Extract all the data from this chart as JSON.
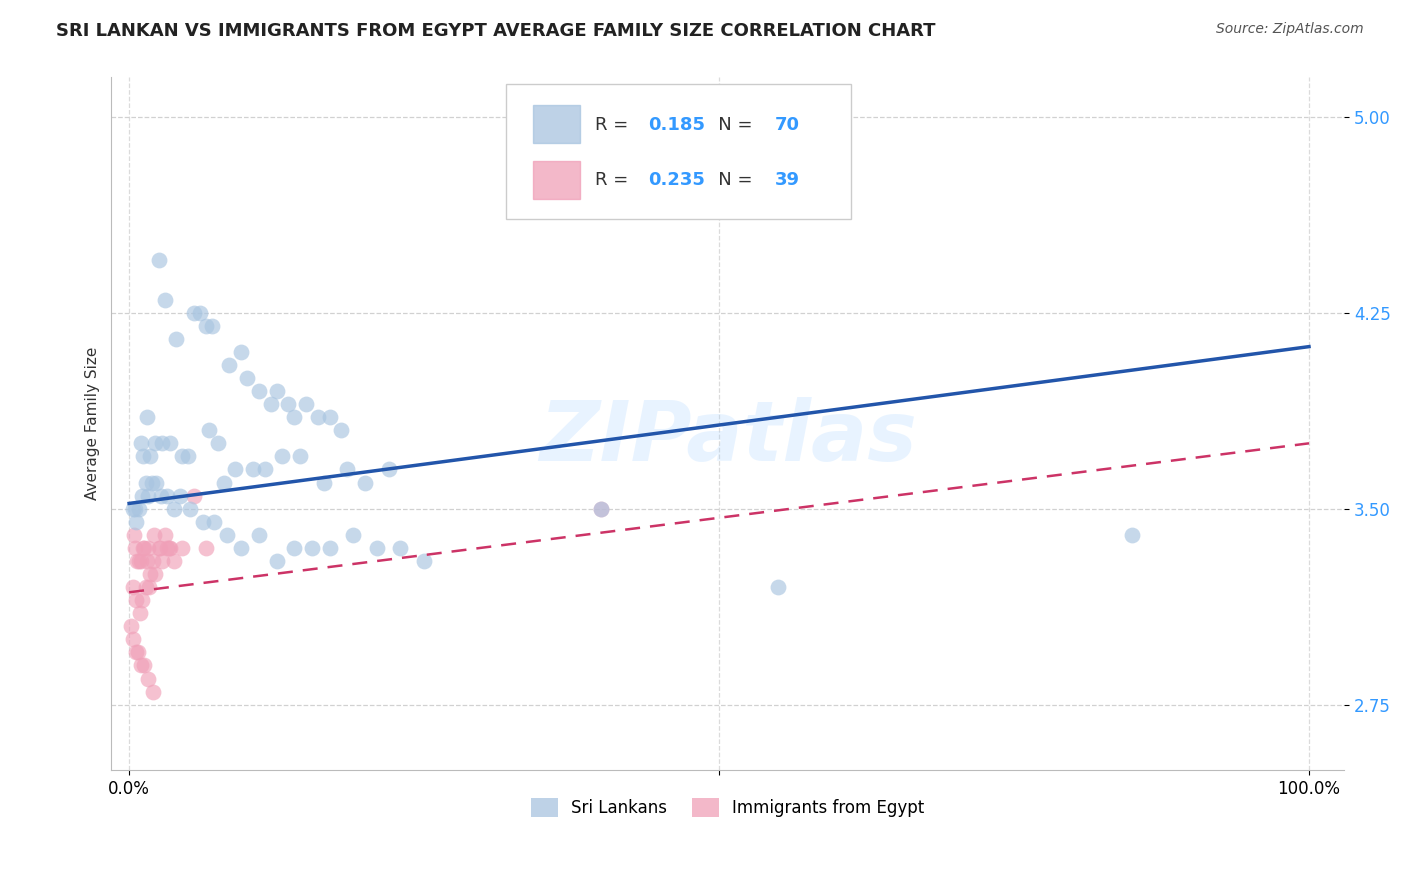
{
  "title": "SRI LANKAN VS IMMIGRANTS FROM EGYPT AVERAGE FAMILY SIZE CORRELATION CHART",
  "source": "Source: ZipAtlas.com",
  "ylabel": "Average Family Size",
  "watermark": "ZIPatlas",
  "sri_lankans": {
    "label": "Sri Lankans",
    "R": 0.185,
    "N": 70,
    "color": "#a8c4e0",
    "line_color": "#2255aa",
    "x": [
      1.5,
      2.5,
      3.0,
      4.0,
      5.5,
      6.0,
      6.5,
      7.0,
      8.5,
      9.5,
      10.0,
      11.0,
      12.0,
      12.5,
      13.5,
      14.0,
      15.0,
      16.0,
      17.0,
      18.0,
      1.0,
      1.2,
      1.8,
      2.2,
      2.8,
      3.5,
      4.5,
      5.0,
      6.8,
      7.5,
      8.0,
      9.0,
      10.5,
      11.5,
      13.0,
      14.5,
      16.5,
      18.5,
      20.0,
      22.0,
      0.5,
      0.8,
      1.1,
      1.4,
      1.6,
      1.9,
      2.3,
      2.7,
      3.2,
      3.8,
      4.3,
      5.2,
      6.3,
      7.2,
      8.3,
      9.5,
      11.0,
      12.5,
      14.0,
      15.5,
      17.0,
      19.0,
      21.0,
      23.0,
      25.0,
      40.0,
      55.0,
      85.0,
      0.3,
      0.6
    ],
    "y": [
      3.85,
      4.45,
      4.3,
      4.15,
      4.25,
      4.25,
      4.2,
      4.2,
      4.05,
      4.1,
      4.0,
      3.95,
      3.9,
      3.95,
      3.9,
      3.85,
      3.9,
      3.85,
      3.85,
      3.8,
      3.75,
      3.7,
      3.7,
      3.75,
      3.75,
      3.75,
      3.7,
      3.7,
      3.8,
      3.75,
      3.6,
      3.65,
      3.65,
      3.65,
      3.7,
      3.7,
      3.6,
      3.65,
      3.6,
      3.65,
      3.5,
      3.5,
      3.55,
      3.6,
      3.55,
      3.6,
      3.6,
      3.55,
      3.55,
      3.5,
      3.55,
      3.5,
      3.45,
      3.45,
      3.4,
      3.35,
      3.4,
      3.3,
      3.35,
      3.35,
      3.35,
      3.4,
      3.35,
      3.35,
      3.3,
      3.5,
      3.2,
      3.4,
      3.5,
      3.45
    ],
    "trend_x": [
      0,
      100
    ],
    "trend_y": [
      3.52,
      4.12
    ]
  },
  "egypt": {
    "label": "Immigrants from Egypt",
    "R": 0.235,
    "N": 39,
    "color": "#f0a0b8",
    "line_color": "#cc3366",
    "x": [
      0.5,
      0.8,
      1.0,
      1.2,
      1.5,
      1.8,
      2.0,
      2.5,
      3.0,
      3.5,
      0.3,
      0.6,
      0.9,
      1.1,
      1.4,
      1.7,
      2.2,
      2.8,
      3.2,
      3.8,
      0.4,
      0.7,
      1.3,
      1.6,
      2.1,
      2.6,
      3.4,
      4.5,
      5.5,
      6.5,
      0.2,
      0.35,
      0.55,
      0.75,
      1.0,
      1.3,
      1.6,
      2.0,
      40.0
    ],
    "y": [
      3.35,
      3.3,
      3.3,
      3.35,
      3.3,
      3.25,
      3.3,
      3.35,
      3.4,
      3.35,
      3.2,
      3.15,
      3.1,
      3.15,
      3.2,
      3.2,
      3.25,
      3.3,
      3.35,
      3.3,
      3.4,
      3.3,
      3.35,
      3.35,
      3.4,
      3.35,
      3.35,
      3.35,
      3.55,
      3.35,
      3.05,
      3.0,
      2.95,
      2.95,
      2.9,
      2.9,
      2.85,
      2.8,
      3.5
    ],
    "trend_x": [
      0,
      100
    ],
    "trend_y": [
      3.18,
      3.75
    ]
  },
  "ylim": [
    2.5,
    5.15
  ],
  "xlim": [
    -1.5,
    103
  ],
  "yticks": [
    2.75,
    3.5,
    4.25,
    5.0
  ],
  "xticks": [
    0,
    50,
    100
  ],
  "xticklabels": [
    "0.0%",
    "",
    "100.0%"
  ],
  "background_color": "#ffffff",
  "grid_color": "#cccccc",
  "title_fontsize": 13,
  "axis_label_fontsize": 11,
  "tick_fontsize": 12,
  "source_fontsize": 10
}
